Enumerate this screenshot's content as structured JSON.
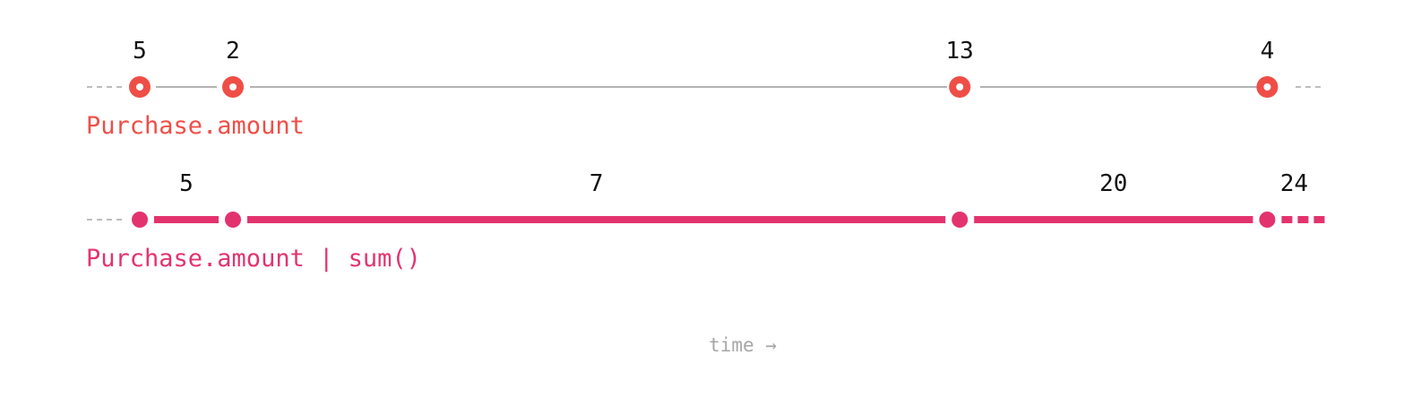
{
  "colors": {
    "events": "#ef4e47",
    "sum": "#e3336f",
    "timeline": "#b3b3b3",
    "dashed": "#bdbdbd",
    "value_text": "#111111",
    "axis_text": "#a6a6a6"
  },
  "rows": [
    {
      "label": "Purchase.amount",
      "kind": "events",
      "events": [
        {
          "t": 1,
          "value": "5"
        },
        {
          "t": 2,
          "value": "2"
        },
        {
          "t": 9.8,
          "value": "13"
        },
        {
          "t": 13.1,
          "value": "4"
        }
      ]
    },
    {
      "label": "Purchase.amount | sum()",
      "kind": "continuous",
      "change_points": [
        1,
        2,
        9.8,
        13.1
      ],
      "segments": [
        {
          "from": 1,
          "to": 2,
          "value": "5"
        },
        {
          "from": 2,
          "to": 9.8,
          "value": "7"
        },
        {
          "from": 9.8,
          "to": 13.1,
          "value": "20"
        },
        {
          "from": 13.1,
          "to": null,
          "value": "24"
        }
      ]
    }
  ],
  "axis": {
    "label": "time →"
  }
}
